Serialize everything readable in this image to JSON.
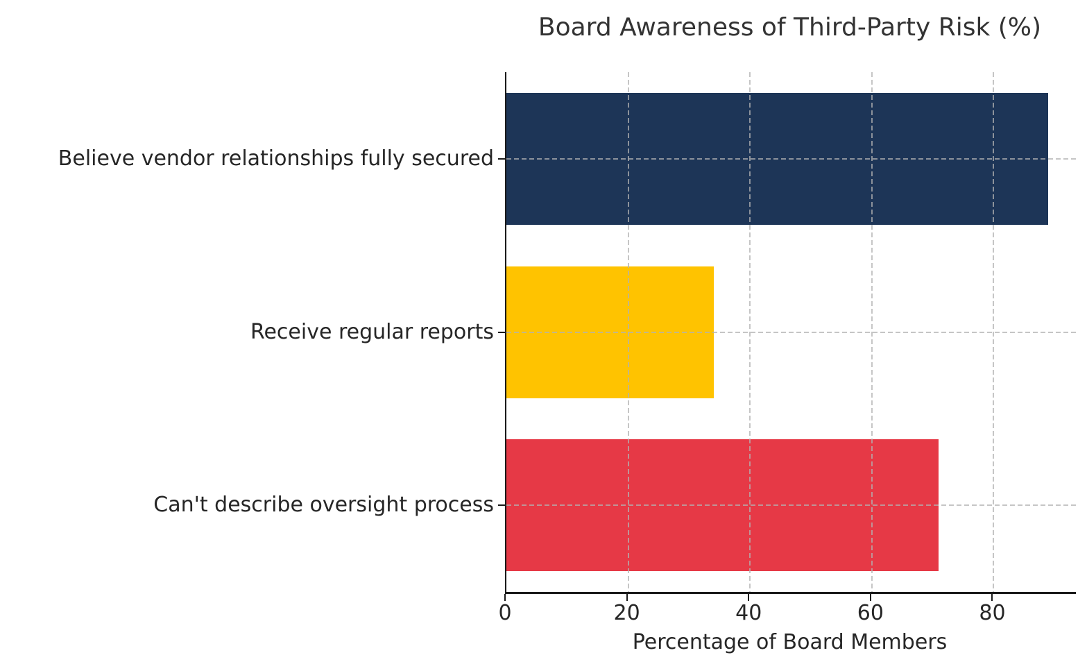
{
  "chart_data": {
    "type": "bar",
    "orientation": "horizontal",
    "title": "Board Awareness of Third-Party Risk (%)",
    "xlabel": "Percentage of Board Members",
    "ylabel": "",
    "categories": [
      "Believe vendor relationships fully secured",
      "Receive regular reports",
      "Can't describe oversight process"
    ],
    "values": [
      89,
      34,
      71
    ],
    "bar_colors": [
      "#1d3557",
      "#ffc300",
      "#e63946"
    ],
    "xlim": [
      0,
      93.5
    ],
    "xticks": [
      0,
      20,
      40,
      60,
      80
    ],
    "grid": "dashed gridlines at x ticks and category centers, drawn over bars",
    "legend": "none",
    "spines": [
      "left",
      "bottom"
    ]
  },
  "colors": {
    "background": "#ffffff",
    "text": "#262626",
    "title_text": "#333333",
    "axis": "#1a1a1a",
    "gridline": "#b2b2b2"
  }
}
